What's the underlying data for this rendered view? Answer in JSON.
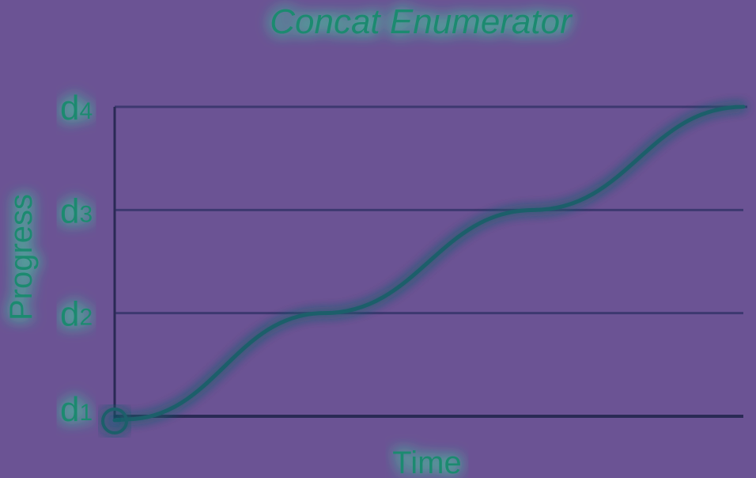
{
  "chart_data": {
    "type": "line",
    "title": "Concat Enumerator",
    "xlabel": "Time",
    "ylabel": "Progress",
    "y_ticks": [
      {
        "label": "d",
        "sub": "1",
        "value": 0
      },
      {
        "label": "d",
        "sub": "2",
        "value": 1
      },
      {
        "label": "d",
        "sub": "3",
        "value": 2
      },
      {
        "label": "d",
        "sub": "4",
        "value": 3
      }
    ],
    "xlim": [
      0,
      3
    ],
    "ylim": [
      0,
      3
    ],
    "grid": true,
    "series": [
      {
        "points": [
          [
            0,
            0
          ],
          [
            0.05,
            0
          ],
          [
            1,
            1
          ],
          [
            2,
            2
          ],
          [
            3,
            3
          ]
        ],
        "segment_boundaries": [
          1,
          2
        ]
      }
    ],
    "colors": {
      "background": "#6b5394",
      "line": "#1f5f6a",
      "axis": "#2a2a55",
      "grid": "#3d3870",
      "glow": "#3fe0a0",
      "text": "#1f8a70"
    }
  }
}
